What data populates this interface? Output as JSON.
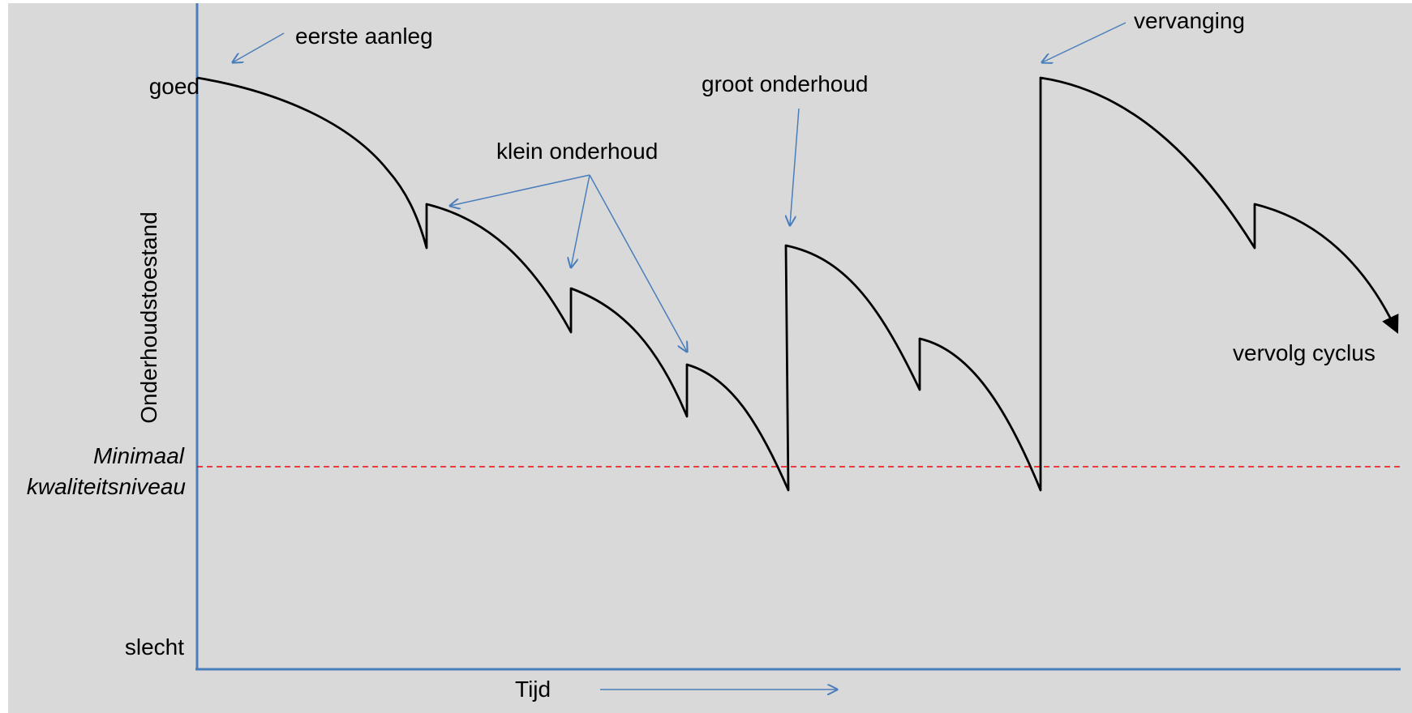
{
  "colors": {
    "background": "#d9d9d9",
    "axis": "#4a7ebb",
    "curve": "#000000",
    "annotation_arrow": "#4a7ebb",
    "threshold_line": "#ff0000"
  },
  "y_axis": {
    "title": "Onderhoudstoestand",
    "top_label": "goed",
    "bottom_label": "slecht"
  },
  "x_axis": {
    "title": "Tijd"
  },
  "threshold": {
    "label_line1": "Minimaal",
    "label_line2": "kwaliteitsniveau"
  },
  "annotations": {
    "eerste_aanleg": "eerste aanleg",
    "klein_onderhoud": "klein onderhoud",
    "groot_onderhoud": "groot onderhoud",
    "vervanging": "vervanging",
    "vervolg_cyclus": "vervolg cyclus"
  }
}
